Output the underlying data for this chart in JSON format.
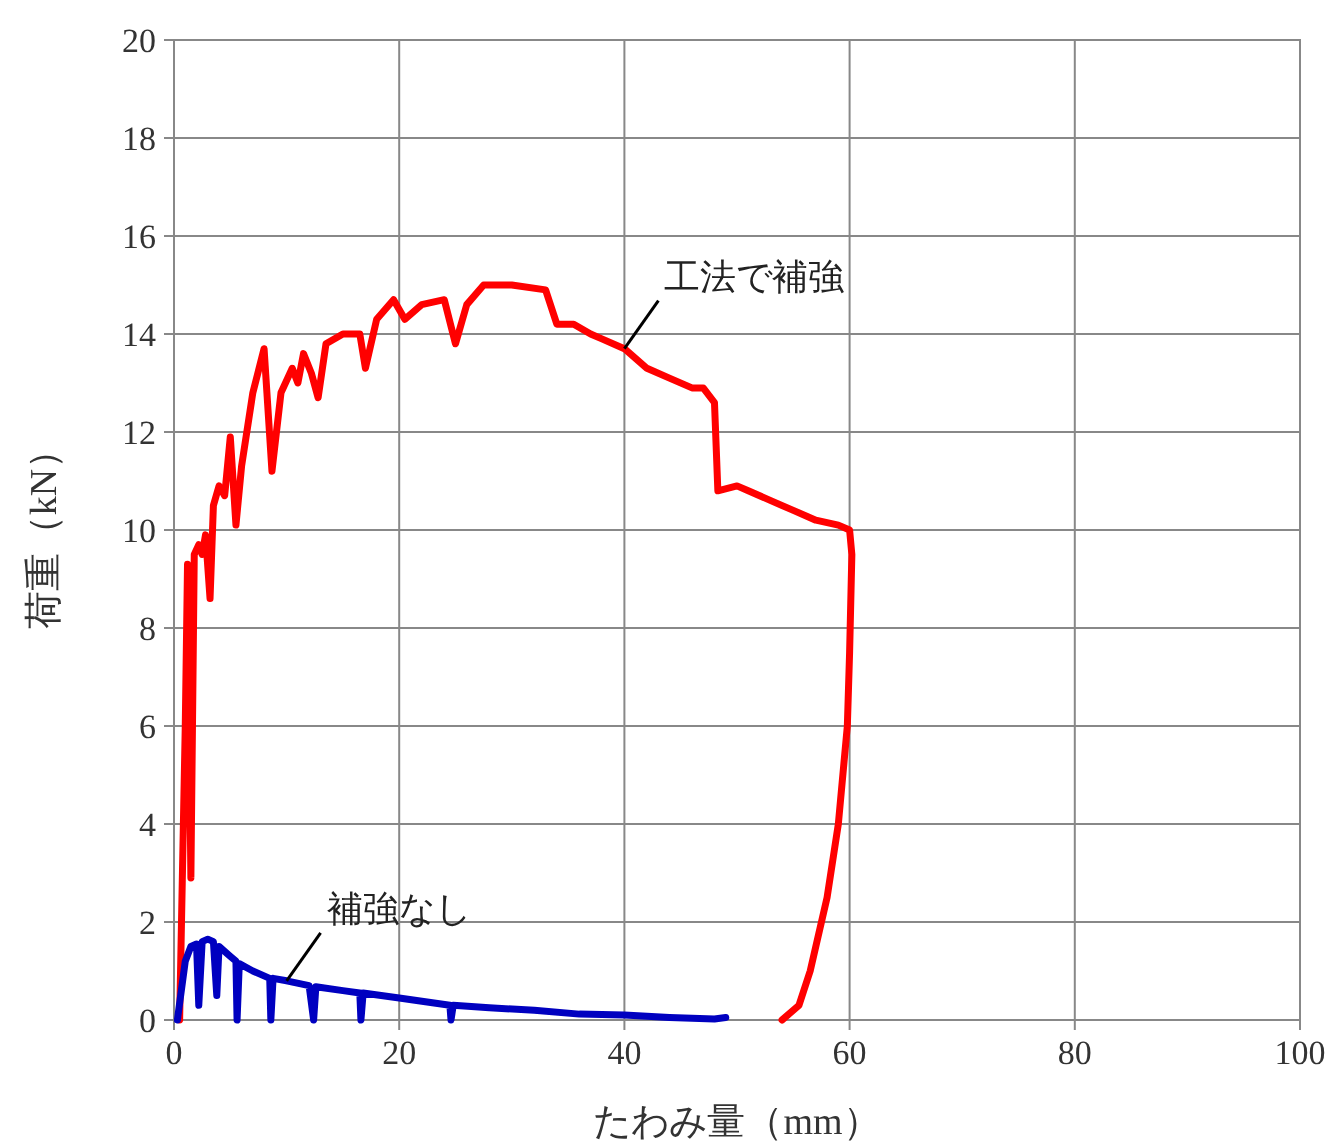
{
  "chart_data": {
    "type": "line",
    "xlabel": "たわみ量（mm）",
    "ylabel": "荷重（kN）",
    "xlim": [
      0,
      100
    ],
    "xticks": [
      0,
      20,
      40,
      60,
      80,
      100
    ],
    "ylim": [
      0,
      20
    ],
    "yticks": [
      0,
      2,
      4,
      6,
      8,
      10,
      12,
      14,
      16,
      18,
      20
    ],
    "grid": true,
    "line_style": "solid",
    "series": [
      {
        "color": "#ff0000",
        "x": [
          0.5,
          1,
          1.2,
          1.5,
          1.8,
          2.2,
          2.5,
          2.8,
          3.2,
          3.5,
          4,
          4.5,
          5,
          5.5,
          6,
          7,
          8,
          8.7,
          9.5,
          10.5,
          11,
          11.5,
          12.2,
          12.8,
          13.5,
          15,
          16.5,
          17,
          18,
          19.5,
          20.5,
          22,
          24,
          25,
          26,
          27.5,
          30,
          33,
          34,
          35.5,
          37,
          38,
          40,
          42,
          44,
          46,
          47,
          48,
          48.3,
          50,
          51,
          53,
          55,
          57,
          59,
          60,
          60.2,
          60,
          59.8,
          59,
          58,
          56.5,
          55.5,
          54
        ],
        "values": [
          0,
          6,
          9.3,
          2.9,
          9.5,
          9.7,
          9.5,
          9.9,
          8.6,
          10.5,
          10.9,
          10.7,
          11.9,
          10.1,
          11.3,
          12.8,
          13.7,
          11.2,
          12.8,
          13.3,
          13.0,
          13.6,
          13.2,
          12.7,
          13.8,
          14.0,
          14.0,
          13.3,
          14.3,
          14.7,
          14.3,
          14.6,
          14.7,
          13.8,
          14.6,
          15.0,
          15.0,
          14.9,
          14.2,
          14.2,
          14.0,
          13.9,
          13.7,
          13.3,
          13.1,
          12.9,
          12.9,
          12.6,
          10.8,
          10.9,
          10.8,
          10.6,
          10.4,
          10.2,
          10.1,
          10.0,
          9.5,
          7.5,
          6,
          4,
          2.5,
          1,
          0.3,
          0
        ]
      },
      {
        "color": "#0000c0",
        "x": [
          0.3,
          1,
          1.5,
          2,
          2.2,
          2.5,
          3,
          3.5,
          3.8,
          4,
          5,
          5.5,
          5.6,
          5.8,
          7,
          8.5,
          8.6,
          8.8,
          10,
          12,
          12.4,
          12.6,
          15,
          16.5,
          16.6,
          16.8,
          20,
          24.5,
          24.6,
          24.8,
          28,
          32,
          36,
          40,
          44,
          48,
          49
        ],
        "values": [
          0,
          1.2,
          1.5,
          1.55,
          0.3,
          1.6,
          1.65,
          1.6,
          0.5,
          1.5,
          1.3,
          1.2,
          0,
          1.15,
          1.0,
          0.85,
          0,
          0.85,
          0.8,
          0.7,
          0,
          0.68,
          0.6,
          0.55,
          0,
          0.55,
          0.45,
          0.3,
          0,
          0.3,
          0.25,
          0.2,
          0.12,
          0.1,
          0.05,
          0.02,
          0.05
        ]
      }
    ],
    "annotations": [
      {
        "text": "工法で補強",
        "x": 40,
        "y": 13.7
      },
      {
        "text": "補強なし",
        "x": 10,
        "y": 0.8
      }
    ]
  }
}
